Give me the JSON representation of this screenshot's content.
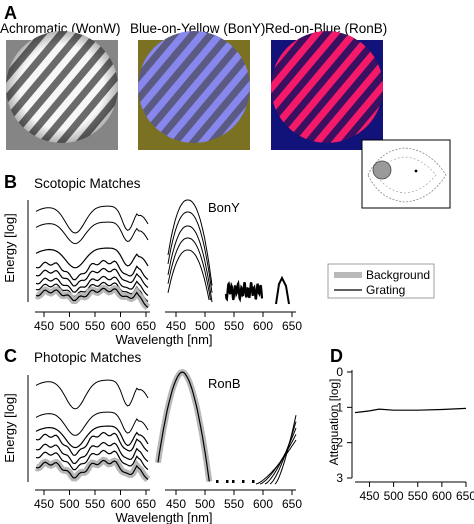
{
  "panels": {
    "A": {
      "letter": "A",
      "stimuli": [
        {
          "label": "Achromatic (WonW)",
          "bg": "#858585",
          "stripe_dark": "#6a6a6a",
          "stripe_light": "#ffffff"
        },
        {
          "label": "Blue-on-Yellow (BonY)",
          "bg": "#7a7222",
          "stripe_dark": "#5a5a82",
          "stripe_light": "#8a8af2"
        },
        {
          "label": "Red-on-Blue (RonB)",
          "bg": "#11127a",
          "stripe_dark": "#3a1160",
          "stripe_light": "#ff1a6a"
        }
      ]
    },
    "B": {
      "letter": "B",
      "title": "Scotopic Matches",
      "inset_label": "BonY"
    },
    "C": {
      "letter": "C",
      "title": "Photopic Matches",
      "inset_label": "RonB"
    },
    "D": {
      "letter": "D"
    },
    "legend": {
      "background": "Background",
      "grating": "Grating"
    }
  },
  "axes": {
    "energy_label": "Energy [log]",
    "wavelength_label": "Wavelength [nm]",
    "attenuation_label": "Attenuation [log]",
    "wl_ticks": [
      "450",
      "500",
      "550",
      "600",
      "650"
    ],
    "wl_ticks_D": [
      "450",
      "500",
      "550",
      "600",
      "650"
    ],
    "atten_ticks": [
      "0",
      "1",
      "2",
      "3"
    ]
  },
  "chart_data": {
    "type": "line",
    "xlabel": "Wavelength [nm]",
    "ylabel": "Attenuation [log]",
    "xlim": [
      420,
      650
    ],
    "ylim": [
      3,
      0
    ],
    "x": [
      420,
      450,
      470,
      500,
      550,
      600,
      650
    ],
    "values": [
      1.15,
      1.1,
      1.05,
      1.08,
      1.08,
      1.06,
      1.03
    ]
  },
  "colors": {
    "curve": "#000000",
    "background_curve": "#b8b8b8"
  }
}
